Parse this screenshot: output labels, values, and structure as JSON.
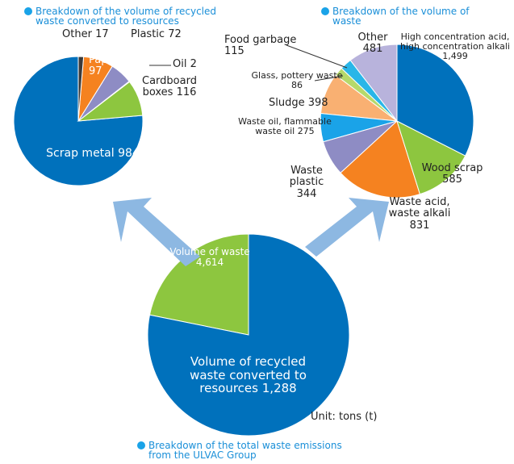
{
  "chart_data": [
    {
      "type": "pie",
      "title": "Breakdown of the volume of recycled waste converted to resources",
      "categories": [
        "Other",
        "Paper",
        "Plastic",
        "Oil",
        "Cardboard boxes",
        "Scrap metal"
      ],
      "values": [
        17,
        97,
        72,
        2,
        116,
        984
      ],
      "colors": [
        "#3a3a3a",
        "#f58220",
        "#8e8cc4",
        "#5a9a3a",
        "#8dc63f",
        "#0071bc"
      ]
    },
    {
      "type": "pie",
      "title": "Breakdown of the volume of waste",
      "categories": [
        "High concentration acid, high concentration alkali",
        "Wood scrap",
        "Waste acid, waste alkali",
        "Waste plastic",
        "Waste oil, flammable waste oil",
        "Sludge",
        "Glass, pottery waste",
        "Food garbage",
        "Other"
      ],
      "values": [
        1499,
        585,
        831,
        344,
        275,
        398,
        86,
        115,
        481
      ],
      "value_labels": [
        "1,499",
        "585",
        "831",
        "344",
        "275",
        "398",
        "86",
        "115",
        "481"
      ],
      "colors": [
        "#0071bc",
        "#8dc63f",
        "#f58220",
        "#8e8cc4",
        "#1aa3e8",
        "#f9b072",
        "#b5d96b",
        "#29b6e8",
        "#b8b3dc"
      ]
    },
    {
      "type": "pie",
      "title": "Breakdown of the total waste emissions from the ULVAC Group",
      "categories": [
        "Volume of waste",
        "Volume of recycled waste converted to resources"
      ],
      "values": [
        4614,
        1288
      ],
      "value_labels": [
        "4,614",
        "1,288"
      ],
      "colors": [
        "#0071bc",
        "#8dc63f"
      ],
      "note": "Unit: tons (t)"
    }
  ]
}
